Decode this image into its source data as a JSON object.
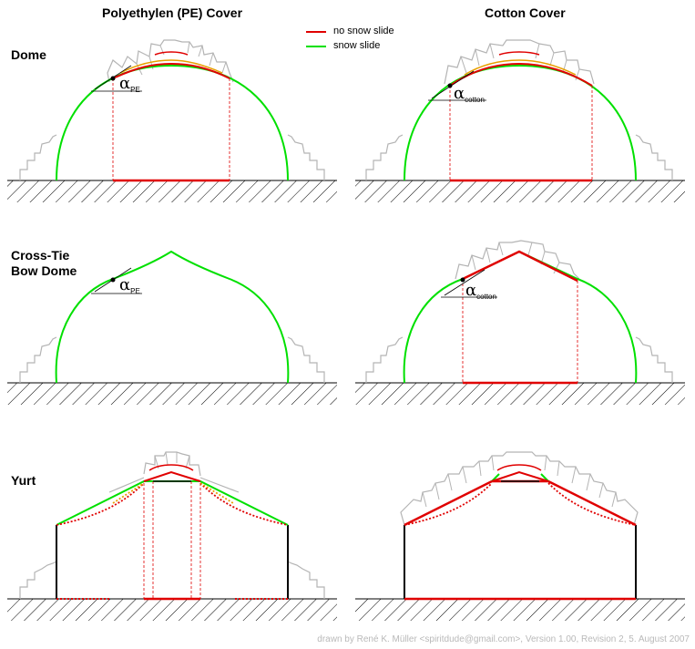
{
  "columns": {
    "left": "Polyethylen (PE) Cover",
    "right": "Cotton Cover"
  },
  "rows": {
    "dome": "Dome",
    "crosstie_line1": "Cross-Tie",
    "crosstie_line2": "Bow Dome",
    "yurt": "Yurt"
  },
  "legend": {
    "no_slide": {
      "label": "no snow slide",
      "color": "#e00000"
    },
    "slide": {
      "label": "snow slide",
      "color": "#00e000"
    }
  },
  "angles": {
    "alpha": "α",
    "pe_sub": "PE",
    "cotton_sub": "cotton"
  },
  "credit": "drawn by René K. Müller <spiritdude@gmail.com>, Version 1.00, Revision 2, 5. August 2007",
  "colors": {
    "red": "#e00000",
    "green": "#00e000",
    "orange": "#e8a000",
    "snow": "#b4b4b4",
    "wall": "#000000"
  }
}
